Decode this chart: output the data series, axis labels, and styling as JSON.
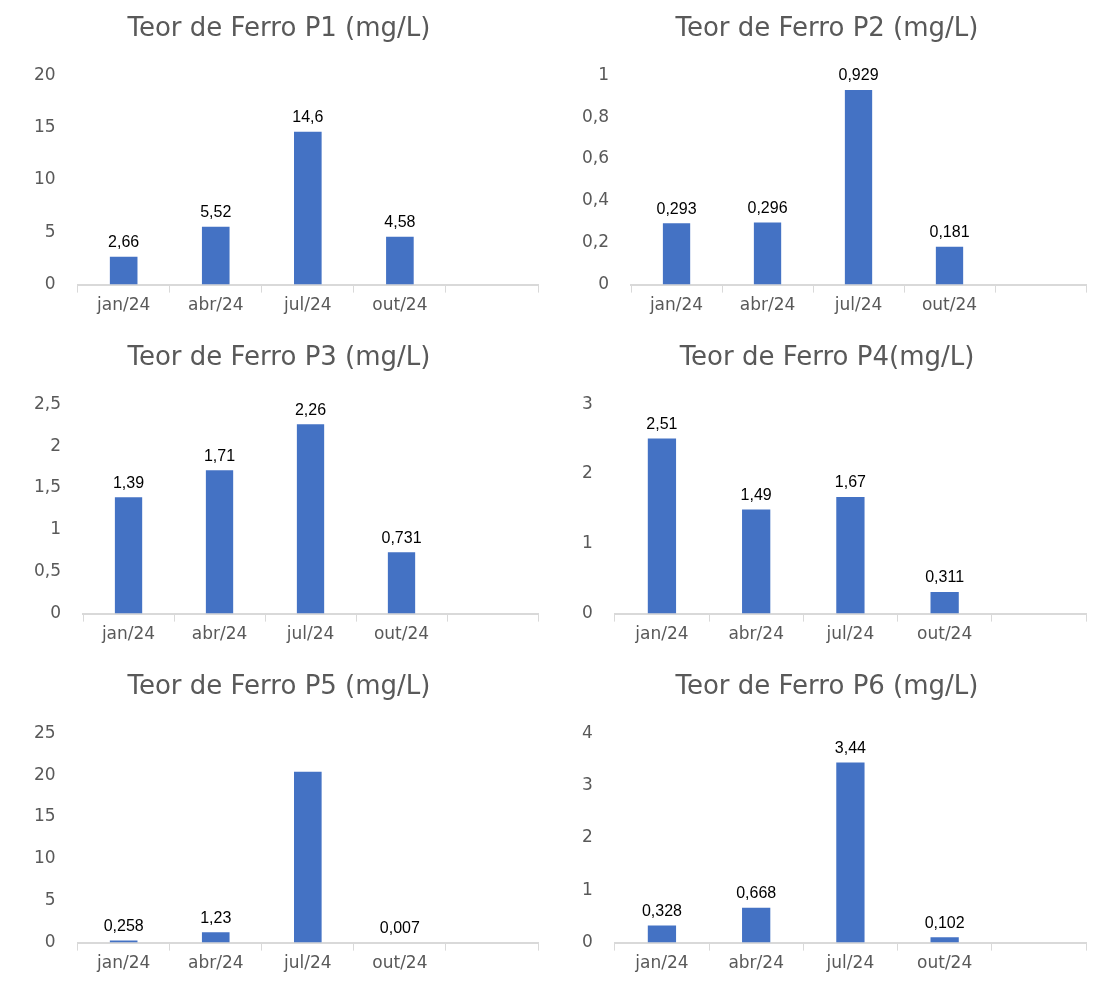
{
  "chart_data": [
    {
      "type": "bar",
      "title": "Teor de Ferro P1 (mg/L)",
      "categories": [
        "jan/24",
        "abr/24",
        "jul/24",
        "out/24",
        null
      ],
      "values": [
        2.66,
        5.52,
        14.6,
        4.58,
        null
      ],
      "value_labels": [
        "2,66",
        "5,52",
        "14,6",
        "4,58",
        null
      ],
      "color": "#4472c4",
      "ylim": [
        0,
        20
      ],
      "yticks": [
        0,
        5,
        10,
        15,
        20
      ]
    },
    {
      "type": "bar",
      "title": "Teor de Ferro P2 (mg/L)",
      "categories": [
        "jan/24",
        "abr/24",
        "jul/24",
        "out/24",
        null
      ],
      "values": [
        0.293,
        0.296,
        0.929,
        0.181,
        null
      ],
      "value_labels": [
        "0,293",
        "0,296",
        "0,929",
        "0,181",
        null
      ],
      "color": "#4472c4",
      "ylim": [
        0,
        1
      ],
      "yticks": [
        0,
        {
          "value": 0.2,
          "label": "0,2"
        },
        {
          "value": 0.4,
          "label": "0,4"
        },
        {
          "value": 0.6,
          "label": "0,6"
        },
        {
          "value": 0.8,
          "label": "0,8"
        },
        1
      ]
    },
    {
      "type": "bar",
      "title": "Teor de Ferro P3 (mg/L)",
      "categories": [
        "jan/24",
        "abr/24",
        "jul/24",
        "out/24",
        null
      ],
      "values": [
        1.39,
        1.71,
        2.26,
        0.731,
        null
      ],
      "value_labels": [
        "1,39",
        "1,71",
        "2,26",
        "0,731",
        null
      ],
      "color": "#4472c4",
      "ylim": [
        0,
        2.5
      ],
      "yticks": [
        0,
        {
          "value": 0.5,
          "label": "0,5"
        },
        1,
        {
          "value": 1.5,
          "label": "1,5"
        },
        2,
        {
          "value": 2.5,
          "label": "2,5"
        }
      ]
    },
    {
      "type": "bar",
      "title": "Teor de Ferro P4(mg/L)",
      "categories": [
        "jan/24",
        "abr/24",
        "jul/24",
        "out/24",
        null
      ],
      "values": [
        2.51,
        1.49,
        1.67,
        0.311,
        null
      ],
      "value_labels": [
        "2,51",
        "1,49",
        "1,67",
        "0,311",
        null
      ],
      "color": "#4472c4",
      "ylim": [
        0,
        3
      ],
      "yticks": [
        0,
        1,
        2,
        3
      ]
    },
    {
      "type": "bar",
      "title": "Teor de Ferro P5 (mg/L)",
      "categories": [
        "jan/24",
        "abr/24",
        "jul/24",
        "out/24",
        null
      ],
      "values": [
        0.258,
        1.23,
        20.4,
        0.007,
        null
      ],
      "value_labels": [
        "0,258",
        "1,23",
        null,
        "0,007",
        null
      ],
      "color": "#4472c4",
      "ylim": [
        0,
        25
      ],
      "yticks": [
        0,
        5,
        10,
        15,
        20,
        25
      ]
    },
    {
      "type": "bar",
      "title": "Teor de Ferro P6 (mg/L)",
      "categories": [
        "jan/24",
        "abr/24",
        "jul/24",
        "out/24",
        null
      ],
      "values": [
        0.328,
        0.668,
        3.44,
        0.102,
        null
      ],
      "value_labels": [
        "0,328",
        "0,668",
        "3,44",
        "0,102",
        null
      ],
      "color": "#4472c4",
      "ylim": [
        0,
        4
      ],
      "yticks": [
        0,
        1,
        2,
        3,
        4
      ]
    }
  ]
}
